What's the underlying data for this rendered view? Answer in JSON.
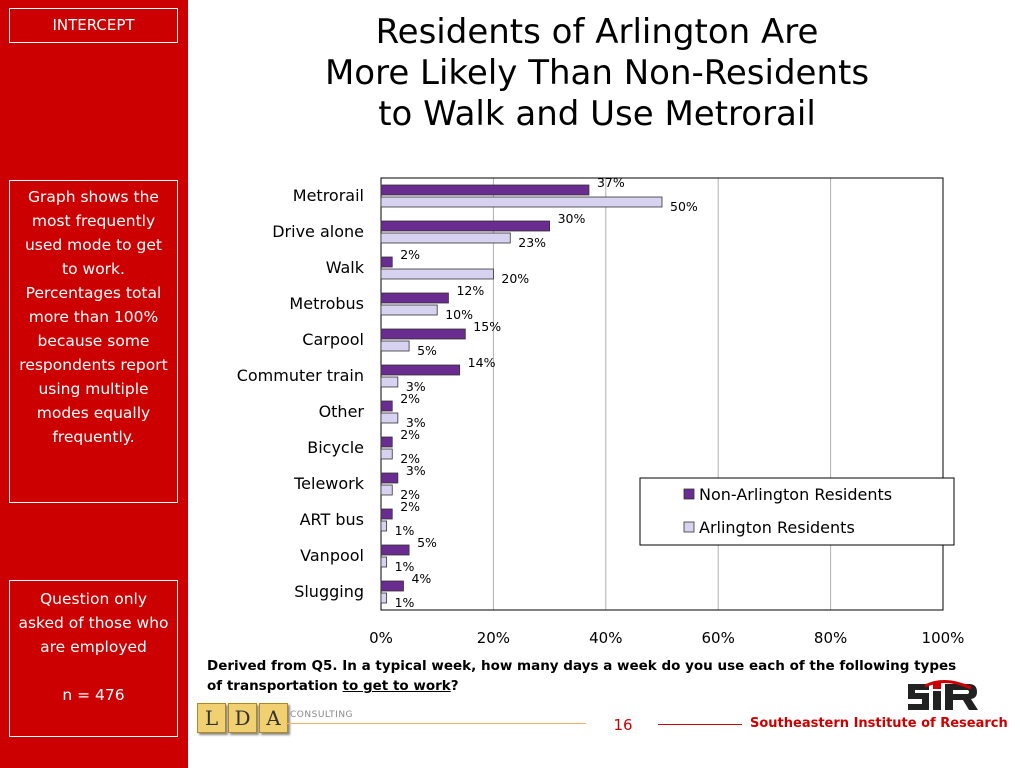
{
  "sidebar": {
    "tag": "INTERCEPT",
    "note": "Graph shows the most frequently used mode to get to work. Percentages total more than 100% because some respondents report using multiple modes equally frequently.",
    "question_note": "Question only asked of those who are employed",
    "sample": "n = 476"
  },
  "title": {
    "line1": "Residents of Arlington Are",
    "line2": "More Likely Than Non-Residents",
    "line3": "to Walk and Use Metrorail"
  },
  "chart_data": {
    "type": "bar",
    "orientation": "horizontal",
    "categories": [
      "Metrorail",
      "Drive alone",
      "Walk",
      "Metrobus",
      "Carpool",
      "Commuter train",
      "Other",
      "Bicycle",
      "Telework",
      "ART bus",
      "Vanpool",
      "Slugging"
    ],
    "series": [
      {
        "name": "Non-Arlington Residents",
        "color": "#6a2c91",
        "values": [
          37,
          30,
          2,
          12,
          15,
          14,
          2,
          2,
          3,
          2,
          5,
          4
        ],
        "labels": [
          "37%",
          "30%",
          "2%",
          "12%",
          "15%",
          "14%",
          "2%",
          "2%",
          "3%",
          "2%",
          "5%",
          "4%"
        ]
      },
      {
        "name": "Arlington Residents",
        "color": "#d6d2f0",
        "values": [
          50,
          23,
          20,
          10,
          5,
          3,
          3,
          2,
          2,
          1,
          1,
          1
        ],
        "labels": [
          "50%",
          "23%",
          "20%",
          "10%",
          "5%",
          "3%",
          "3%",
          "2%",
          "2%",
          "1%",
          "1%",
          "1%"
        ]
      }
    ],
    "xlim": [
      0,
      100
    ],
    "xticks": [
      "0%",
      "20%",
      "40%",
      "60%",
      "80%",
      "100%"
    ],
    "grid": true,
    "legend_position": "bottom-right"
  },
  "footnote": {
    "part1": "Derived from Q5. In a typical week, how many days a week do you use each of the following types of transportation ",
    "underlined": "to get to work",
    "part2": "?"
  },
  "footer": {
    "logo_letters": [
      "L",
      "D",
      "A"
    ],
    "consulting": "CONSULTING",
    "page_number": "16",
    "org_name": "Southeastern Institute of Research"
  }
}
